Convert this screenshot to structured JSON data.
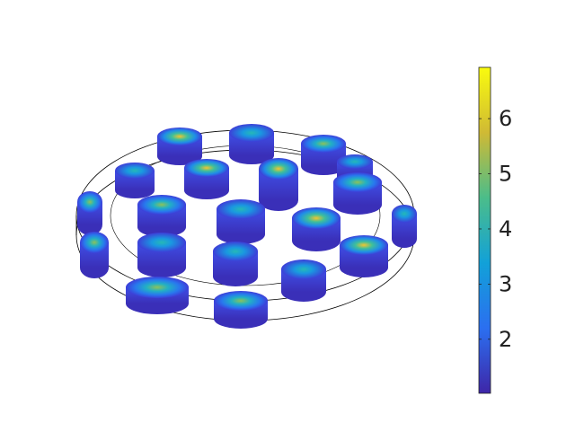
{
  "chart_data": {
    "type": "colorbar",
    "clim": [
      1.02,
      6.93
    ],
    "cticks": [
      2,
      3,
      4,
      5,
      6
    ],
    "colormap": [
      "#3e26a8",
      "#2b6ff0",
      "#12a1d8",
      "#4bbd8a",
      "#d0ba34",
      "#f9fb0e"
    ]
  }
}
